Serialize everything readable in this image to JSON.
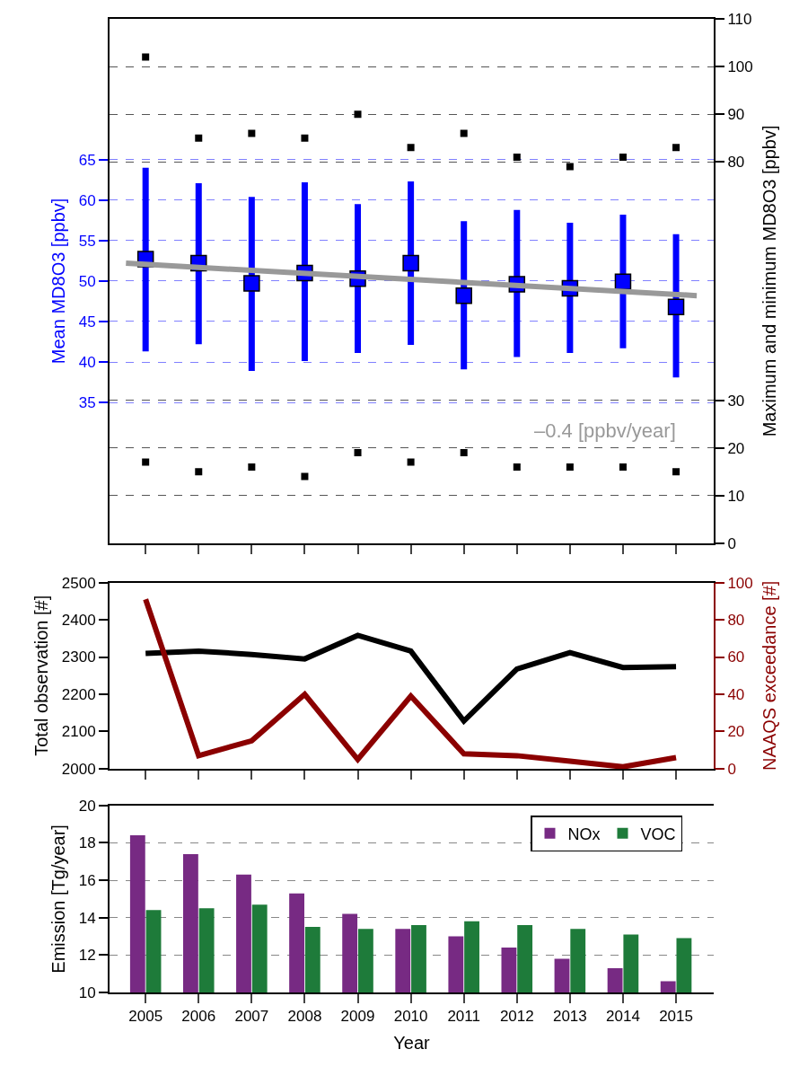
{
  "chart_data": [
    {
      "type": "scatter",
      "x": [
        2005,
        2006,
        2007,
        2008,
        2009,
        2010,
        2011,
        2012,
        2013,
        2014,
        2015
      ],
      "xlim": [
        2004.32,
        2015.71
      ],
      "xticks": [
        {
          "value": 2005,
          "label": null
        },
        {
          "value": 2006,
          "label": null
        },
        {
          "value": 2007,
          "label": null
        },
        {
          "value": 2008,
          "label": null
        },
        {
          "value": 2009,
          "label": null
        },
        {
          "value": 2010,
          "label": null
        },
        {
          "value": 2011,
          "label": null
        },
        {
          "value": 2012,
          "label": null
        },
        {
          "value": 2013,
          "label": null
        },
        {
          "value": 2014,
          "label": null
        },
        {
          "value": 2015,
          "label": null
        }
      ],
      "tick_labels": "y",
      "ylabel": "Mean MD8O3 [ppbv]",
      "y2label": "Maximum and minimum MD8O3 [ppbv]",
      "ylim": [
        17.6,
        82.4
      ],
      "yticks": [
        35,
        40,
        45,
        50,
        55,
        60,
        65
      ],
      "y2lim": [
        0,
        110
      ],
      "y2ticks": [
        0,
        10,
        20,
        30,
        80,
        90,
        100,
        110
      ],
      "grid": "y",
      "legend": false,
      "series": [
        {
          "type": "scatter",
          "marker": "square",
          "color": "#0000ff",
          "values": [
            52.7,
            52.2,
            49.7,
            51.0,
            50.3,
            52.2,
            48.2,
            49.6,
            49.1,
            49.9,
            46.8
          ],
          "errors": [
            [
              41.3,
              64.0
            ],
            [
              42.2,
              62.1
            ],
            [
              38.9,
              60.4
            ],
            [
              40.1,
              62.2
            ],
            [
              41.1,
              59.5
            ],
            [
              42.1,
              62.3
            ],
            [
              39.1,
              57.4
            ],
            [
              40.6,
              58.8
            ],
            [
              41.1,
              57.2
            ],
            [
              41.7,
              58.2
            ],
            [
              38.1,
              55.8
            ]
          ]
        },
        {
          "type": "line",
          "color": "#999999",
          "x": [
            2004.63,
            2015.39
          ],
          "values": [
            52.2,
            48.2
          ]
        },
        {
          "type": "scatter",
          "marker": "square",
          "axis": "y2",
          "color": "#000000",
          "values": [
            102,
            85,
            86,
            85,
            90,
            83,
            86,
            81,
            79,
            81,
            83
          ]
        },
        {
          "type": "scatter",
          "marker": "square",
          "axis": "y2",
          "color": "#000000",
          "values": [
            17,
            15,
            16,
            14,
            19,
            17,
            19,
            16,
            16,
            16,
            15
          ]
        }
      ],
      "annotations": [
        "–0.4 [ppbv/year]"
      ]
    },
    {
      "type": "line",
      "x": [
        2005,
        2006,
        2007,
        2008,
        2009,
        2010,
        2011,
        2012,
        2013,
        2014,
        2015
      ],
      "xlim": [
        2004.32,
        2015.71
      ],
      "xticks": [
        {
          "value": 2005,
          "label": null
        },
        {
          "value": 2006,
          "label": null
        },
        {
          "value": 2007,
          "label": null
        },
        {
          "value": 2008,
          "label": null
        },
        {
          "value": 2009,
          "label": null
        },
        {
          "value": 2010,
          "label": null
        },
        {
          "value": 2011,
          "label": null
        },
        {
          "value": 2012,
          "label": null
        },
        {
          "value": 2013,
          "label": null
        },
        {
          "value": 2014,
          "label": null
        },
        {
          "value": 2015,
          "label": null
        }
      ],
      "tick_labels": "y",
      "ylabel": "Total observation [#]",
      "y2label": "NAAQS exceedance [#]",
      "ylim": [
        2000,
        2500
      ],
      "yticks": [
        2000,
        2100,
        2200,
        2300,
        2400,
        2500
      ],
      "y2lim": [
        0,
        100
      ],
      "y2ticks": [
        0,
        20,
        40,
        60,
        80,
        100
      ],
      "legend": false,
      "series": [
        {
          "type": "line",
          "color": "#000000",
          "values": [
            2310,
            2316,
            2307,
            2295,
            2358,
            2316,
            2128,
            2268,
            2312,
            2272,
            2274
          ]
        },
        {
          "type": "line",
          "axis": "y2",
          "color": "#8b0000",
          "values": [
            91,
            7,
            15,
            40,
            5,
            39,
            8,
            7,
            4,
            1,
            6
          ]
        }
      ]
    },
    {
      "type": "bar",
      "x": [
        2005,
        2006,
        2007,
        2008,
        2009,
        2010,
        2011,
        2012,
        2013,
        2014,
        2015
      ],
      "xlim": [
        2004.32,
        2015.71
      ],
      "xticks": [
        2005,
        2006,
        2007,
        2008,
        2009,
        2010,
        2011,
        2012,
        2013,
        2014,
        2015
      ],
      "xlabel": "Year",
      "ylabel": "Emission [Tg/year]",
      "ylim": [
        10,
        20
      ],
      "yticks": [
        10,
        12,
        14,
        16,
        18,
        20
      ],
      "grid": "y",
      "legend": "top right",
      "series": [
        {
          "name": "NOx",
          "color": "#772a83",
          "values": [
            18.4,
            17.4,
            16.3,
            15.3,
            14.2,
            13.4,
            13.0,
            12.4,
            11.8,
            11.3,
            10.6
          ]
        },
        {
          "name": "VOC",
          "color": "#1e7b3a",
          "values": [
            14.4,
            14.5,
            14.7,
            13.5,
            13.4,
            13.6,
            13.8,
            13.6,
            13.4,
            13.1,
            12.9
          ]
        }
      ]
    }
  ]
}
